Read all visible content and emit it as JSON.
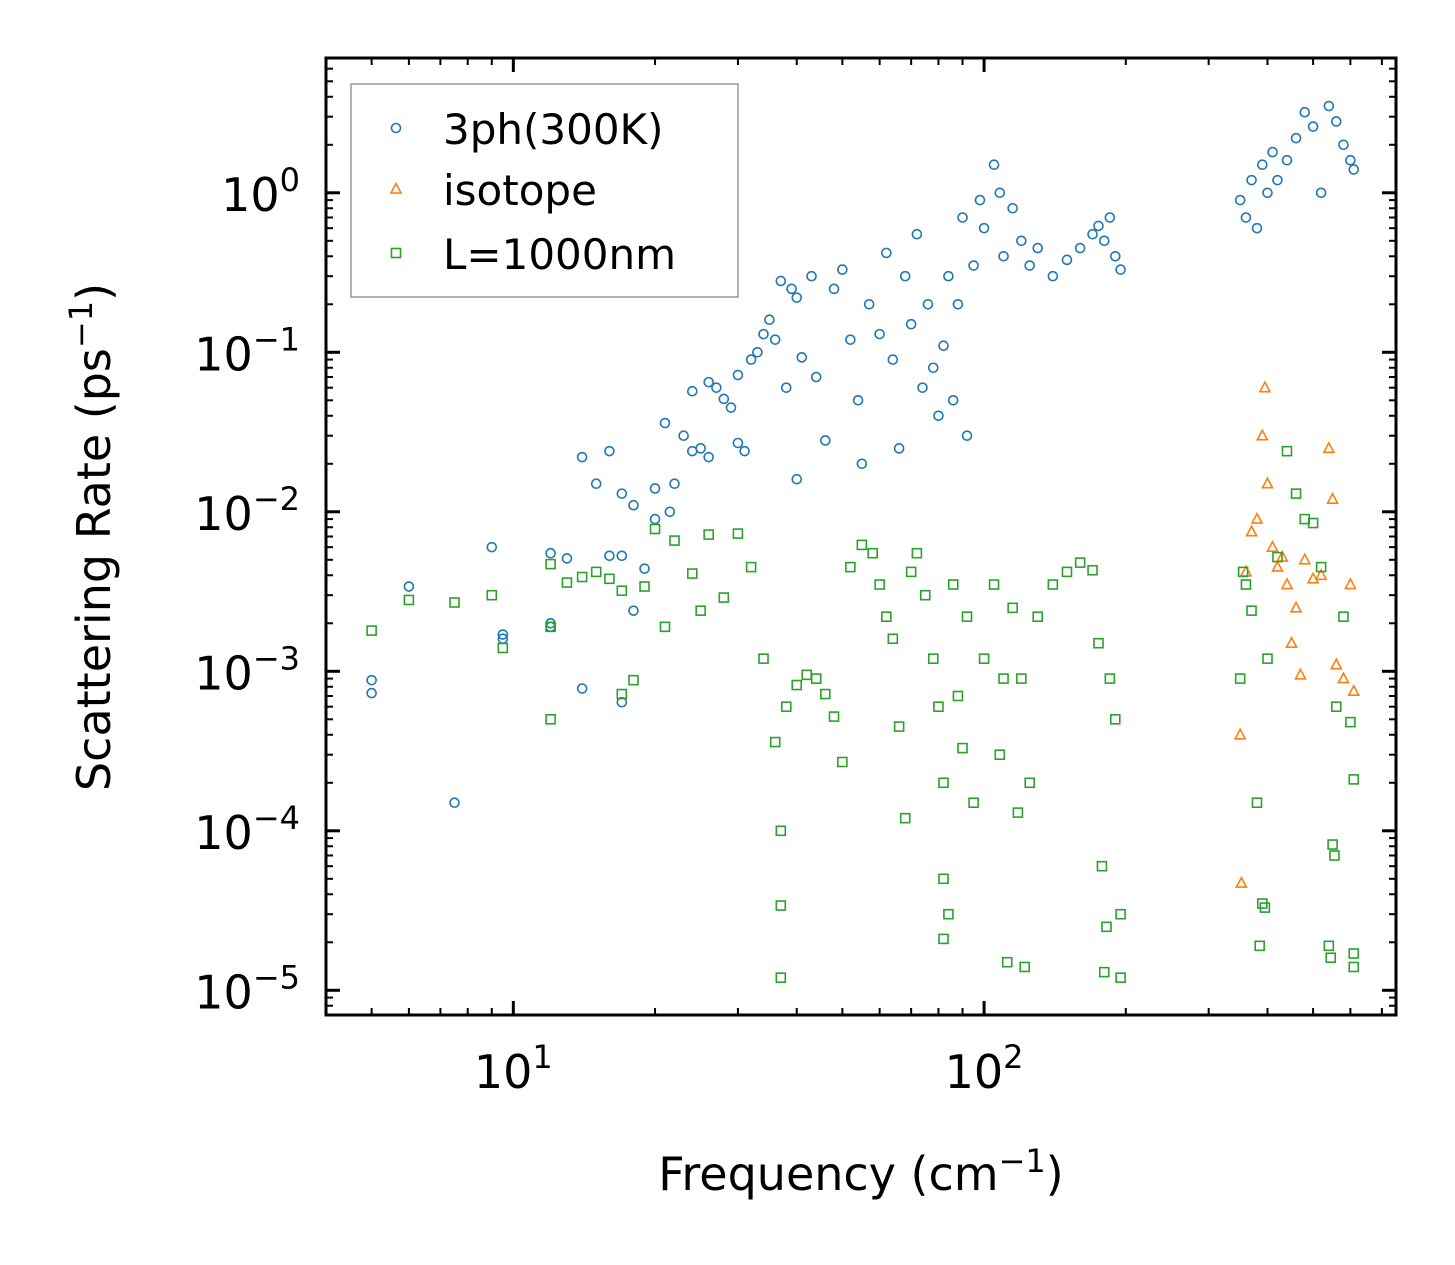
{
  "chart_data": {
    "type": "scatter",
    "title": "",
    "xlabel": "Frequency (cm",
    "xlabel_sup": "−1",
    "xlabel_end": ")",
    "ylabel": "Scattering Rate (ps",
    "ylabel_sup": "−1",
    "ylabel_end": ")",
    "xscale": "log",
    "yscale": "log",
    "xlim": [
      4.0,
      750
    ],
    "ylim": [
      7e-06,
      7
    ],
    "grid": false,
    "legend_position": "upper-left",
    "x_ticks": [
      {
        "value": 10,
        "base": "10",
        "exp": "1"
      },
      {
        "value": 100,
        "base": "10",
        "exp": "2"
      }
    ],
    "y_ticks": [
      {
        "value": 1,
        "base": "10",
        "exp": "0"
      },
      {
        "value": 0.1,
        "base": "10",
        "exp": "−1"
      },
      {
        "value": 0.01,
        "base": "10",
        "exp": "−2"
      },
      {
        "value": 0.001,
        "base": "10",
        "exp": "−3"
      },
      {
        "value": 0.0001,
        "base": "10",
        "exp": "−4"
      },
      {
        "value": 1e-05,
        "base": "10",
        "exp": "−5"
      }
    ],
    "series": [
      {
        "name": "3ph(300K)",
        "marker": "circle",
        "color": "#1f77b4",
        "points": [
          [
            5.0,
            0.00088
          ],
          [
            5.0,
            0.00073
          ],
          [
            6.0,
            0.0034
          ],
          [
            7.5,
            0.00015
          ],
          [
            9.0,
            0.006
          ],
          [
            9.5,
            0.0017
          ],
          [
            9.5,
            0.0016
          ],
          [
            12.0,
            0.002
          ],
          [
            12.0,
            0.0019
          ],
          [
            12.0,
            0.0055
          ],
          [
            13.0,
            0.0051
          ],
          [
            14.0,
            0.00078
          ],
          [
            14.0,
            0.022
          ],
          [
            15.0,
            0.015
          ],
          [
            16.0,
            0.024
          ],
          [
            16.0,
            0.0053
          ],
          [
            17.0,
            0.0053
          ],
          [
            17.0,
            0.013
          ],
          [
            17.0,
            0.00064
          ],
          [
            18.0,
            0.0024
          ],
          [
            18.0,
            0.011
          ],
          [
            19.0,
            0.0044
          ],
          [
            20.0,
            0.009
          ],
          [
            20.0,
            0.014
          ],
          [
            21.0,
            0.036
          ],
          [
            21.5,
            0.01
          ],
          [
            22.0,
            0.015
          ],
          [
            23.0,
            0.03
          ],
          [
            24.0,
            0.057
          ],
          [
            24.0,
            0.024
          ],
          [
            25.0,
            0.025
          ],
          [
            26.0,
            0.065
          ],
          [
            26.0,
            0.022
          ],
          [
            27.0,
            0.06
          ],
          [
            28.0,
            0.051
          ],
          [
            29.0,
            0.045
          ],
          [
            30.0,
            0.072
          ],
          [
            30.0,
            0.027
          ],
          [
            31.0,
            0.024
          ],
          [
            32.0,
            0.09
          ],
          [
            33.0,
            0.1
          ],
          [
            34.0,
            0.13
          ],
          [
            35.0,
            0.16
          ],
          [
            36.0,
            0.12
          ],
          [
            37.0,
            0.28
          ],
          [
            38.0,
            0.06
          ],
          [
            39.0,
            0.25
          ],
          [
            40.0,
            0.016
          ],
          [
            40.0,
            0.22
          ],
          [
            41.0,
            0.093
          ],
          [
            43.0,
            0.3
          ],
          [
            44.0,
            0.07
          ],
          [
            46.0,
            0.028
          ],
          [
            48.0,
            0.25
          ],
          [
            50.0,
            0.33
          ],
          [
            52.0,
            0.12
          ],
          [
            54.0,
            0.05
          ],
          [
            55.0,
            0.02
          ],
          [
            57.0,
            0.2
          ],
          [
            60.0,
            0.13
          ],
          [
            62.0,
            0.42
          ],
          [
            64.0,
            0.09
          ],
          [
            66.0,
            0.025
          ],
          [
            68.0,
            0.3
          ],
          [
            70.0,
            0.15
          ],
          [
            72.0,
            0.55
          ],
          [
            74.0,
            0.06
          ],
          [
            76.0,
            0.2
          ],
          [
            78.0,
            0.08
          ],
          [
            80.0,
            0.04
          ],
          [
            82.0,
            0.11
          ],
          [
            84.0,
            0.3
          ],
          [
            86.0,
            0.05
          ],
          [
            88.0,
            0.2
          ],
          [
            90.0,
            0.7
          ],
          [
            92.0,
            0.03
          ],
          [
            95.0,
            0.35
          ],
          [
            98.0,
            0.9
          ],
          [
            100.0,
            0.6
          ],
          [
            105.0,
            1.5
          ],
          [
            108.0,
            1.0
          ],
          [
            110.0,
            0.4
          ],
          [
            115.0,
            0.8
          ],
          [
            120.0,
            0.5
          ],
          [
            125.0,
            0.35
          ],
          [
            130.0,
            0.45
          ],
          [
            140.0,
            0.3
          ],
          [
            150.0,
            0.38
          ],
          [
            160.0,
            0.45
          ],
          [
            170.0,
            0.55
          ],
          [
            175.0,
            0.62
          ],
          [
            180.0,
            0.5
          ],
          [
            185.0,
            0.7
          ],
          [
            190.0,
            0.4
          ],
          [
            195.0,
            0.33
          ],
          [
            350.0,
            0.9
          ],
          [
            360.0,
            0.7
          ],
          [
            370.0,
            1.2
          ],
          [
            380.0,
            0.6
          ],
          [
            390.0,
            1.5
          ],
          [
            400.0,
            1.0
          ],
          [
            410.0,
            1.8
          ],
          [
            420.0,
            1.2
          ],
          [
            440.0,
            1.6
          ],
          [
            460.0,
            2.2
          ],
          [
            480.0,
            3.2
          ],
          [
            500.0,
            2.6
          ],
          [
            520.0,
            1.0
          ],
          [
            540.0,
            3.5
          ],
          [
            560.0,
            2.8
          ],
          [
            580.0,
            2.0
          ],
          [
            600.0,
            1.6
          ],
          [
            610.0,
            1.4
          ]
        ]
      },
      {
        "name": "isotope",
        "marker": "triangle",
        "color": "#ff7f0e",
        "points": [
          [
            350.0,
            0.0004
          ],
          [
            352.0,
            4.7e-05
          ],
          [
            360.0,
            0.0042
          ],
          [
            370.0,
            0.0075
          ],
          [
            380.0,
            0.009
          ],
          [
            390.0,
            0.03
          ],
          [
            395.0,
            0.06
          ],
          [
            400.0,
            0.015
          ],
          [
            410.0,
            0.006
          ],
          [
            420.0,
            0.0045
          ],
          [
            430.0,
            0.0052
          ],
          [
            440.0,
            0.0035
          ],
          [
            450.0,
            0.0015
          ],
          [
            460.0,
            0.0025
          ],
          [
            470.0,
            0.00095
          ],
          [
            480.0,
            0.005
          ],
          [
            500.0,
            0.0038
          ],
          [
            520.0,
            0.004
          ],
          [
            540.0,
            0.025
          ],
          [
            550.0,
            0.012
          ],
          [
            560.0,
            0.0011
          ],
          [
            580.0,
            0.0009
          ],
          [
            600.0,
            0.0035
          ],
          [
            610.0,
            0.00075
          ]
        ]
      },
      {
        "name": "L=1000nm",
        "marker": "square",
        "color": "#2ca02c",
        "points": [
          [
            5.0,
            0.0018
          ],
          [
            6.0,
            0.0028
          ],
          [
            7.5,
            0.0027
          ],
          [
            9.0,
            0.003
          ],
          [
            9.5,
            0.0014
          ],
          [
            12.0,
            0.0047
          ],
          [
            12.0,
            0.0019
          ],
          [
            12.0,
            0.0005
          ],
          [
            13.0,
            0.0036
          ],
          [
            14.0,
            0.0039
          ],
          [
            15.0,
            0.0042
          ],
          [
            16.0,
            0.0038
          ],
          [
            17.0,
            0.0032
          ],
          [
            17.0,
            0.00072
          ],
          [
            18.0,
            0.00088
          ],
          [
            19.0,
            0.0034
          ],
          [
            20.0,
            0.0078
          ],
          [
            21.0,
            0.0019
          ],
          [
            22.0,
            0.0066
          ],
          [
            24.0,
            0.0041
          ],
          [
            25.0,
            0.0024
          ],
          [
            26.0,
            0.0072
          ],
          [
            28.0,
            0.0029
          ],
          [
            30.0,
            0.0073
          ],
          [
            32.0,
            0.0045
          ],
          [
            34.0,
            0.0012
          ],
          [
            36.0,
            0.00036
          ],
          [
            37.0,
            0.0001
          ],
          [
            37.0,
            3.4e-05
          ],
          [
            37.0,
            1.2e-05
          ],
          [
            38.0,
            0.0006
          ],
          [
            40.0,
            0.00082
          ],
          [
            42.0,
            0.00095
          ],
          [
            44.0,
            0.0009
          ],
          [
            46.0,
            0.00072
          ],
          [
            48.0,
            0.00052
          ],
          [
            50.0,
            0.00027
          ],
          [
            52.0,
            0.0045
          ],
          [
            55.0,
            0.0062
          ],
          [
            58.0,
            0.0055
          ],
          [
            60.0,
            0.0035
          ],
          [
            62.0,
            0.0022
          ],
          [
            64.0,
            0.0016
          ],
          [
            66.0,
            0.00045
          ],
          [
            68.0,
            0.00012
          ],
          [
            70.0,
            0.0042
          ],
          [
            72.0,
            0.0055
          ],
          [
            75.0,
            0.003
          ],
          [
            78.0,
            0.0012
          ],
          [
            80.0,
            0.0006
          ],
          [
            82.0,
            0.0002
          ],
          [
            82.0,
            5e-05
          ],
          [
            82.0,
            2.1e-05
          ],
          [
            84.0,
            3e-05
          ],
          [
            86.0,
            0.0035
          ],
          [
            88.0,
            0.0007
          ],
          [
            90.0,
            0.00033
          ],
          [
            92.0,
            0.0022
          ],
          [
            95.0,
            0.00015
          ],
          [
            100.0,
            0.0012
          ],
          [
            105.0,
            0.0035
          ],
          [
            108.0,
            0.0003
          ],
          [
            110.0,
            0.0009
          ],
          [
            112.0,
            1.5e-05
          ],
          [
            115.0,
            0.0025
          ],
          [
            118.0,
            0.00013
          ],
          [
            120.0,
            0.0009
          ],
          [
            122.0,
            1.4e-05
          ],
          [
            125.0,
            0.0002
          ],
          [
            130.0,
            0.0022
          ],
          [
            140.0,
            0.0035
          ],
          [
            150.0,
            0.0042
          ],
          [
            160.0,
            0.0048
          ],
          [
            170.0,
            0.0043
          ],
          [
            175.0,
            0.0015
          ],
          [
            178.0,
            6e-05
          ],
          [
            180.0,
            1.3e-05
          ],
          [
            182.0,
            2.5e-05
          ],
          [
            185.0,
            0.0009
          ],
          [
            190.0,
            0.0005
          ],
          [
            195.0,
            3e-05
          ],
          [
            195.0,
            1.2e-05
          ],
          [
            350.0,
            0.0009
          ],
          [
            355.0,
            0.0042
          ],
          [
            360.0,
            0.0035
          ],
          [
            370.0,
            0.0024
          ],
          [
            380.0,
            0.00015
          ],
          [
            385.0,
            1.9e-05
          ],
          [
            390.0,
            3.5e-05
          ],
          [
            395.0,
            3.3e-05
          ],
          [
            400.0,
            0.0012
          ],
          [
            420.0,
            0.0052
          ],
          [
            440.0,
            0.024
          ],
          [
            460.0,
            0.013
          ],
          [
            480.0,
            0.009
          ],
          [
            500.0,
            0.0085
          ],
          [
            520.0,
            0.0045
          ],
          [
            540.0,
            1.9e-05
          ],
          [
            545.0,
            1.6e-05
          ],
          [
            550.0,
            8.2e-05
          ],
          [
            555.0,
            7e-05
          ],
          [
            560.0,
            0.0006
          ],
          [
            580.0,
            0.0022
          ],
          [
            600.0,
            0.00048
          ],
          [
            610.0,
            0.00021
          ],
          [
            610.0,
            1.7e-05
          ],
          [
            610.0,
            1.4e-05
          ]
        ]
      }
    ]
  }
}
